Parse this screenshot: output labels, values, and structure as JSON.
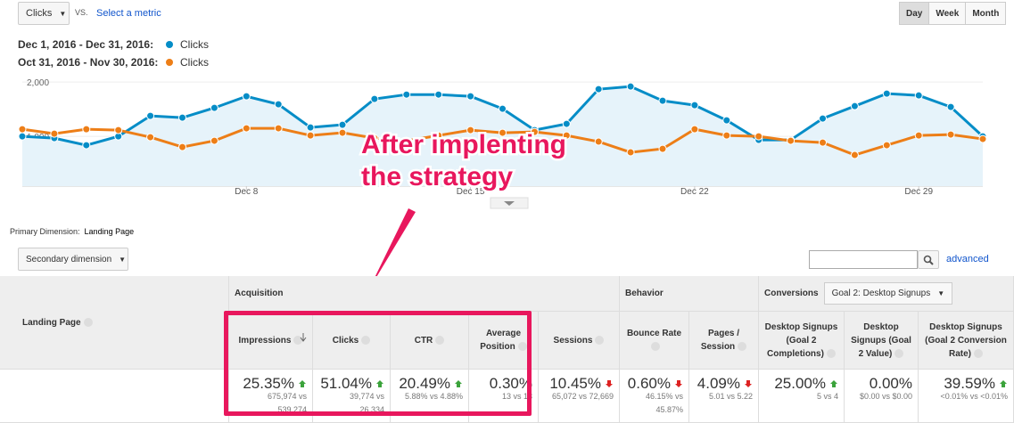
{
  "controls": {
    "metric": "Clicks",
    "vs": "VS.",
    "select_metric": "Select a metric",
    "periods": [
      "Day",
      "Week",
      "Month"
    ],
    "active_period": "Day"
  },
  "chart_data": {
    "type": "line",
    "categories": [
      null,
      null,
      null,
      null,
      null,
      null,
      null,
      "Dec 8",
      null,
      null,
      null,
      null,
      null,
      null,
      "Dec 15",
      null,
      null,
      null,
      null,
      null,
      null,
      "Dec 22",
      null,
      null,
      null,
      null,
      null,
      null,
      "Dec 29",
      null,
      null
    ],
    "series": [
      {
        "name": "Clicks",
        "period": "Dec 1, 2016 - Dec 31, 2016:",
        "color": "#058dc7",
        "fill": "#e6f3fa",
        "values": [
          1000,
          967,
          836,
          1000,
          1377,
          1344,
          1525,
          1738,
          1590,
          1164,
          1213,
          1689,
          1770,
          1770,
          1738,
          1508,
          1115,
          1230,
          1869,
          1918,
          1656,
          1574,
          1295,
          934,
          934,
          1328,
          1557,
          1787,
          1754,
          1541,
          1000
        ]
      },
      {
        "name": "Clicks",
        "period": "Oct 31, 2016 - Nov 30, 2016:",
        "color": "#ed7e17",
        "values": [
          1131,
          1049,
          1131,
          1115,
          984,
          803,
          918,
          1148,
          1148,
          1016,
          1066,
          967,
          918,
          1016,
          1115,
          1066,
          1082,
          1016,
          902,
          705,
          770,
          1131,
          1016,
          1000,
          918,
          885,
          656,
          836,
          1016,
          1033,
          951
        ]
      }
    ],
    "ylim": [
      0,
      2200
    ],
    "yticks": [
      {
        "value": 1000,
        "label": "1,000"
      },
      {
        "value": 2000,
        "label": "2,000"
      }
    ],
    "grid": true
  },
  "annotation": [
    "After implenting",
    "the strategy"
  ],
  "primary_dimension": {
    "label": "Primary Dimension:",
    "value": "Landing Page"
  },
  "secondary_dimension": "Secondary dimension",
  "advanced": "advanced",
  "table": {
    "first_column": "Landing Page",
    "groups": [
      {
        "label": "Acquisition",
        "span": 5
      },
      {
        "label": "Behavior",
        "span": 2
      },
      {
        "label": "Conversions",
        "span": 3,
        "dropdown": "Goal 2: Desktop Signups"
      }
    ],
    "columns": [
      {
        "label": "Impressions",
        "value": "25.35%",
        "trend": "up",
        "detail": "675,974 vs 539,274",
        "sorted": true
      },
      {
        "label": "Clicks",
        "value": "51.04%",
        "trend": "up",
        "detail": "39,774 vs 26,334"
      },
      {
        "label": "CTR",
        "value": "20.49%",
        "trend": "up",
        "detail": "5.88% vs 4.88%"
      },
      {
        "label": "Average Position",
        "value": "0.30%",
        "trend": null,
        "detail": "13 vs 13"
      },
      {
        "label": "Sessions",
        "value": "10.45%",
        "trend": "down",
        "detail": "65,072 vs 72,669"
      },
      {
        "label": "Bounce Rate",
        "value": "0.60%",
        "trend": "down",
        "detail": "46.15% vs 45.87%"
      },
      {
        "label": "Pages / Session",
        "value": "4.09%",
        "trend": "down",
        "detail": "5.01 vs 5.22"
      },
      {
        "label": "Desktop Signups (Goal 2 Completions)",
        "value": "25.00%",
        "trend": "up",
        "detail": "5 vs 4"
      },
      {
        "label": "Desktop Signups (Goal 2 Value)",
        "value": "0.00%",
        "trend": null,
        "detail": "$0.00 vs $0.00"
      },
      {
        "label": "Desktop Signups (Goal 2 Conversion Rate)",
        "value": "39.59%",
        "trend": "up",
        "detail": "<0.01% vs <0.01%"
      }
    ]
  }
}
